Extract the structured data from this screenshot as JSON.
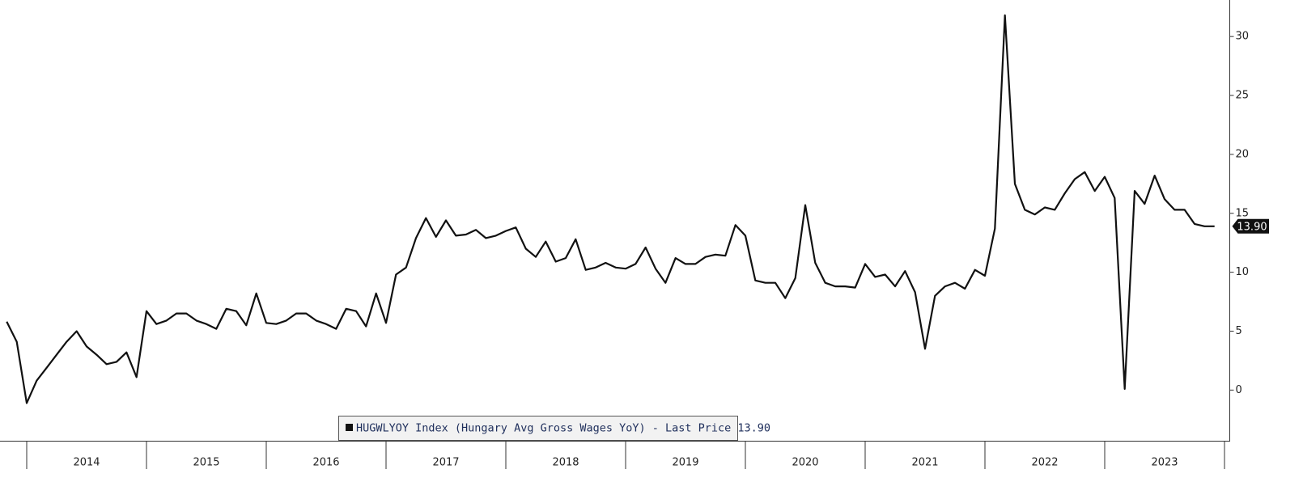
{
  "chart_data": {
    "type": "line",
    "legend": "HUGWLYOY Index (Hungary Avg Gross Wages YoY) - Last Price 13.90",
    "xticks": [
      "2014",
      "2015",
      "2016",
      "2017",
      "2018",
      "2019",
      "2020",
      "2021",
      "2022",
      "2023"
    ],
    "series": [
      {
        "name": "HUGWLYOY Index",
        "color": "#111111",
        "values": [
          5.8,
          4.1,
          -1.1,
          0.8,
          1.9,
          3.0,
          4.1,
          5.0,
          3.7,
          3.0,
          2.2,
          2.4,
          3.2,
          1.1,
          6.7,
          5.6,
          5.9,
          6.5,
          6.5,
          5.9,
          5.6,
          5.2,
          6.9,
          6.7,
          5.5,
          8.2,
          5.7,
          5.6,
          5.9,
          6.5,
          6.5,
          5.9,
          5.6,
          5.2,
          6.9,
          6.7,
          5.4,
          8.2,
          5.7,
          9.8,
          10.4,
          12.9,
          14.6,
          13.0,
          14.4,
          13.1,
          13.2,
          13.6,
          12.9,
          13.1,
          13.5,
          13.8,
          12.0,
          11.3,
          12.6,
          10.9,
          11.2,
          12.8,
          10.2,
          10.4,
          10.8,
          10.4,
          10.3,
          10.7,
          12.1,
          10.3,
          9.1,
          11.2,
          10.7,
          10.7,
          11.3,
          11.5,
          11.4,
          14.0,
          13.1,
          9.3,
          9.1,
          9.1,
          7.8,
          9.5,
          15.7,
          10.8,
          9.1,
          8.8,
          8.8,
          8.7,
          10.7,
          9.6,
          9.8,
          8.8,
          10.1,
          8.3,
          3.5,
          8.0,
          8.8,
          9.1,
          8.6,
          10.2,
          9.7,
          13.7,
          31.8,
          17.5,
          15.3,
          14.9,
          15.5,
          15.3,
          16.7,
          17.9,
          18.5,
          16.9,
          18.1,
          16.3,
          0.1,
          16.9,
          15.8,
          18.2,
          16.2,
          15.3,
          15.3,
          14.1,
          13.9,
          13.9
        ]
      }
    ],
    "last_price": {
      "value": 13.9,
      "label": "13.90"
    },
    "ylim": [
      -4.3,
      33.1
    ],
    "yticks": [
      0,
      5,
      10,
      15,
      20,
      25,
      30
    ]
  }
}
